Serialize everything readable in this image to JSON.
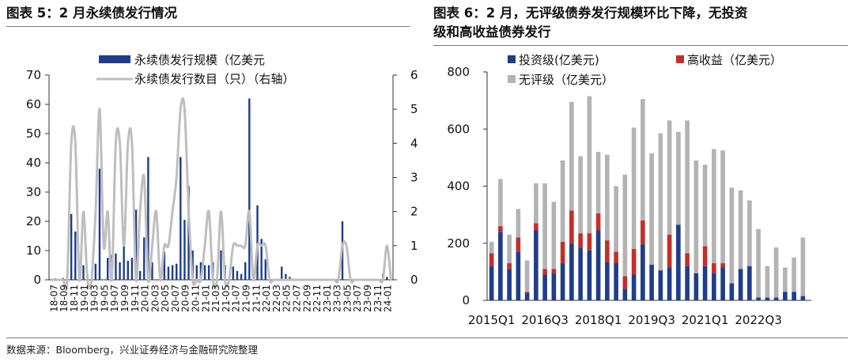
{
  "left_title": "图表 5：2 月永续债发行情况",
  "right_title_line1": "图表 6：2 月，无评级债券发行规模环比下降，无投资",
  "right_title_line2": "级和高收益债券发行",
  "source": "数据来源：Bloomberg，兴业证券经济与金融研究院整理",
  "colors": {
    "navy": "#1F3D8A",
    "red": "#C0302B",
    "gray": "#B3B3B3",
    "gray_line": "#BEBEBE"
  },
  "chart_data": [
    {
      "type": "bar",
      "legend": [
        "永续债发行规模（亿美元",
        "永续债发行数目（只）（右轴）"
      ],
      "y_left_ticks": [
        "0",
        "10",
        "20",
        "30",
        "40",
        "50",
        "60",
        "70"
      ],
      "y_right_ticks": [
        "0",
        "1",
        "2",
        "3",
        "4",
        "5",
        "6"
      ],
      "ylim_left": [
        0,
        70
      ],
      "ylim_right": [
        0,
        6
      ],
      "x_tick_labels": [
        "18-07",
        "18-09",
        "18-11",
        "19-01",
        "19-03",
        "19-05",
        "19-07",
        "19-09",
        "19-11",
        "20-01",
        "20-03",
        "20-05",
        "20-07",
        "20-09",
        "20-11",
        "21-01",
        "21-03",
        "21-05",
        "21-07",
        "21-09",
        "21-11",
        "22-01",
        "22-03",
        "22-05",
        "22-07",
        "22-09",
        "22-11",
        "23-01",
        "23-03",
        "23-05",
        "23-07",
        "23-09",
        "23-11",
        "24-01"
      ],
      "series": [
        {
          "name": "永续债发行规模（亿美元",
          "values": [
            0,
            0.5,
            0,
            0.6,
            0,
            22.5,
            16.5,
            1.5,
            5,
            1.5,
            0,
            5.5,
            38,
            0,
            7.5,
            8.5,
            9,
            6,
            12.5,
            6.5,
            7.5,
            24,
            3,
            14.5,
            42,
            6,
            0,
            0,
            9.5,
            4.5,
            5,
            5.5,
            42,
            20.5,
            32,
            10,
            5,
            6,
            5,
            5,
            6,
            0,
            10,
            5,
            0,
            4.5,
            3,
            2,
            6,
            62,
            1,
            25.5,
            14,
            7,
            0,
            0,
            0,
            4.5,
            2,
            1,
            0,
            0,
            0,
            0,
            0,
            0,
            0,
            0,
            0,
            0,
            0,
            0,
            20,
            0,
            0,
            0,
            0,
            0,
            0,
            0,
            0,
            0,
            2,
            1,
            0
          ]
        },
        {
          "name": "永续债发行数目（只）（右轴）",
          "values": [
            0,
            0,
            0,
            0,
            0,
            4,
            4,
            0,
            2,
            0,
            0,
            2,
            5,
            1,
            2,
            0,
            4,
            4,
            1,
            4,
            4,
            0,
            2,
            3,
            0,
            1,
            2,
            0,
            1,
            1,
            2,
            3,
            5,
            5,
            2,
            0,
            0,
            0,
            1,
            2,
            0,
            0,
            2,
            0,
            0,
            1,
            1,
            1,
            1,
            2,
            0,
            1,
            1,
            1,
            0,
            0,
            0,
            0,
            0,
            0,
            0,
            0,
            0,
            0,
            0,
            0,
            0,
            0,
            0,
            0,
            0,
            0,
            1,
            1,
            0,
            0,
            0,
            0,
            0,
            0,
            0,
            0,
            0,
            1,
            0
          ]
        }
      ]
    },
    {
      "type": "bar",
      "stacked": true,
      "legend": [
        "投资级(亿美元)",
        "高收益（亿美元）",
        "无评级（亿美元）"
      ],
      "y_ticks": [
        "0",
        "200",
        "400",
        "600",
        "800"
      ],
      "ylim": [
        0,
        800
      ],
      "x_tick_labels": [
        "2015Q1",
        "2016Q3",
        "2018Q1",
        "2019Q3",
        "2021Q1",
        "2022Q3"
      ],
      "categories": [
        "2015Q1",
        "2015Q2",
        "2015Q3",
        "2015Q4",
        "2016Q1",
        "2016Q2",
        "2016Q3",
        "2016Q4",
        "2017Q1",
        "2017Q2",
        "2017Q3",
        "2017Q4",
        "2018Q1",
        "2018Q2",
        "2018Q3",
        "2018Q4",
        "2019Q1",
        "2019Q2",
        "2019Q3",
        "2019Q4",
        "2020Q1",
        "2020Q2",
        "2020Q3",
        "2020Q4",
        "2021Q1",
        "2021Q2",
        "2021Q3",
        "2021Q4",
        "2022Q1",
        "2022Q2",
        "2022Q3",
        "2022Q4",
        "2023Q1",
        "2023Q2",
        "2023Q3",
        "2023Q4"
      ],
      "series": [
        {
          "name": "投资级(亿美元)",
          "values": [
            120,
            240,
            110,
            170,
            25,
            245,
            90,
            95,
            130,
            200,
            185,
            175,
            245,
            135,
            130,
            40,
            90,
            195,
            125,
            105,
            115,
            265,
            120,
            95,
            120,
            95,
            115,
            60,
            110,
            120,
            10,
            10,
            10,
            30,
            30,
            15
          ]
        },
        {
          "name": "高收益（亿美元）",
          "values": [
            45,
            20,
            20,
            50,
            5,
            25,
            20,
            15,
            75,
            115,
            50,
            60,
            60,
            75,
            40,
            45,
            90,
            85,
            0,
            0,
            115,
            0,
            45,
            0,
            70,
            35,
            15,
            0,
            0,
            0,
            0,
            0,
            0,
            0,
            0,
            0
          ]
        },
        {
          "name": "无评级（亿美元）",
          "values": [
            40,
            165,
            100,
            100,
            110,
            140,
            300,
            235,
            285,
            380,
            270,
            480,
            215,
            300,
            230,
            355,
            425,
            425,
            390,
            480,
            400,
            325,
            465,
            395,
            285,
            400,
            395,
            335,
            275,
            230,
            240,
            110,
            175,
            85,
            120,
            205
          ]
        }
      ]
    }
  ]
}
